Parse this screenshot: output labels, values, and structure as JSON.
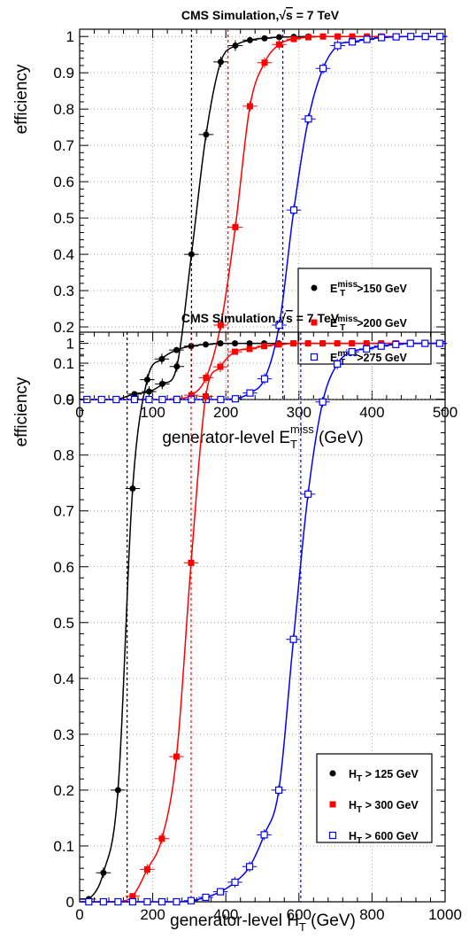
{
  "colors": {
    "black": "#000000",
    "red": "#ff0000",
    "blue": "#0000ff",
    "grid": "#a0a0a0"
  },
  "chart_data": [
    {
      "type": "scatter",
      "title_main": "CMS Simulation,",
      "title_sqrt": "s",
      "title_rest": " = 7 TeV",
      "xlabel_main": "generator-level E",
      "xlabel_sub": "T",
      "xlabel_sup": "miss",
      "xlabel_unit": " (GeV)",
      "ylabel": "efficiency",
      "xlim": [
        0,
        500
      ],
      "ylim": [
        0,
        1.02
      ],
      "xticks": [
        "0",
        "100",
        "200",
        "300",
        "400",
        "500"
      ],
      "yticks": [
        "0",
        "0.1",
        "0.2",
        "0.3",
        "0.4",
        "0.5",
        "0.6",
        "0.7",
        "0.8",
        "0.9",
        "1"
      ],
      "grid": true,
      "legend_position": "lower-right",
      "series": [
        {
          "name_main": "E",
          "name_sub": "T",
          "name_sup": "miss",
          "name_rest": ">150 GeV",
          "color": "#000000",
          "marker": "filled-circle",
          "threshold": 153,
          "x": [
            10,
            30,
            50,
            75,
            95,
            113,
            133,
            153,
            173,
            193,
            213,
            233,
            253,
            273,
            293,
            313,
            333,
            353,
            373,
            393,
            413,
            433,
            453,
            473,
            493
          ],
          "y": [
            0.0,
            0.0,
            0.0,
            0.015,
            0.022,
            0.043,
            0.091,
            0.4,
            0.73,
            0.93,
            0.975,
            0.99,
            0.995,
            0.998,
            0.999,
            1.0,
            1.0,
            1.0,
            1.0,
            1.0,
            1.0,
            1.0,
            1.0,
            1.0,
            1.0
          ]
        },
        {
          "name_main": "E",
          "name_sub": "T",
          "name_sup": "miss",
          "name_rest": ">200 GeV",
          "color": "#ff0000",
          "marker": "filled-square",
          "threshold": 203,
          "x": [
            10,
            30,
            50,
            75,
            95,
            113,
            133,
            153,
            173,
            193,
            213,
            233,
            253,
            273,
            293,
            313,
            333,
            353,
            373,
            393,
            413,
            433,
            453,
            473,
            493
          ],
          "y": [
            0.0,
            0.0,
            0.0,
            0.0,
            0.0,
            0.0,
            0.002,
            0.012,
            0.06,
            0.205,
            0.475,
            0.808,
            0.928,
            0.978,
            0.993,
            0.998,
            1.0,
            1.0,
            1.0,
            1.0,
            1.0,
            1.0,
            1.0,
            1.0,
            1.0
          ]
        },
        {
          "name_main": "E",
          "name_sub": "T",
          "name_sup": "miss",
          "name_rest": ">275 GeV",
          "color": "#0000ff",
          "marker": "open-square",
          "threshold": 278,
          "x": [
            10,
            30,
            50,
            75,
            95,
            113,
            133,
            153,
            173,
            193,
            213,
            233,
            253,
            273,
            293,
            313,
            333,
            353,
            373,
            393,
            413,
            433,
            453,
            473,
            493
          ],
          "y": [
            0.0,
            0.0,
            0.0,
            0.0,
            0.0,
            0.0,
            0.0,
            0.0,
            0.0,
            0.0,
            0.002,
            0.018,
            0.057,
            0.205,
            0.522,
            0.773,
            0.912,
            0.975,
            0.985,
            0.992,
            0.997,
            0.999,
            1.0,
            1.0,
            1.0
          ]
        }
      ]
    },
    {
      "type": "scatter",
      "title_main": "CMS Simulation,",
      "title_sqrt": "s",
      "title_rest": " = 7 TeV",
      "xlabel_main": "generator-level H",
      "xlabel_sub": "T",
      "xlabel_sup": "",
      "xlabel_unit": " (GeV)",
      "ylabel": "efficiency",
      "xlim": [
        0,
        1000
      ],
      "ylim": [
        0,
        1.02
      ],
      "xticks": [
        "0",
        "200",
        "400",
        "600",
        "800",
        "1000"
      ],
      "yticks": [
        "0",
        "0.1",
        "0.2",
        "0.3",
        "0.4",
        "0.5",
        "0.6",
        "0.7",
        "0.8",
        "0.9",
        "1"
      ],
      "grid": true,
      "legend_position": "lower-right",
      "series": [
        {
          "name_main": "H",
          "name_sub": "T",
          "name_sup": "",
          "name_rest": " > 125 GeV",
          "color": "#000000",
          "marker": "filled-circle",
          "threshold": 130,
          "x": [
            25,
            65,
            105,
            145,
            185,
            225,
            265,
            305,
            345,
            385,
            425,
            465,
            505,
            545,
            585,
            625,
            665,
            705,
            745,
            785,
            825,
            865,
            905,
            945,
            985
          ],
          "y": [
            0.005,
            0.052,
            0.2,
            0.74,
            0.935,
            0.972,
            0.988,
            0.995,
            0.998,
            1.0,
            1.0,
            1.0,
            1.0,
            1.0,
            1.0,
            1.0,
            1.0,
            1.0,
            1.0,
            1.0,
            1.0,
            1.0,
            1.0,
            1.0,
            1.0
          ]
        },
        {
          "name_main": "H",
          "name_sub": "T",
          "name_sup": "",
          "name_rest": " > 300 GeV",
          "color": "#ff0000",
          "marker": "filled-square",
          "threshold": 305,
          "x": [
            25,
            65,
            105,
            145,
            185,
            225,
            265,
            305,
            345,
            385,
            425,
            465,
            505,
            545,
            585,
            625,
            665,
            705,
            745,
            785,
            825,
            865,
            905,
            945,
            985
          ],
          "y": [
            0.0,
            0.0,
            0.0,
            0.01,
            0.058,
            0.113,
            0.26,
            0.607,
            0.905,
            0.958,
            0.985,
            0.99,
            0.995,
            0.998,
            1.0,
            1.0,
            1.0,
            1.0,
            1.0,
            1.0,
            1.0,
            1.0,
            1.0,
            1.0,
            1.0
          ]
        },
        {
          "name_main": "H",
          "name_sub": "T",
          "name_sup": "",
          "name_rest": " > 600 GeV",
          "color": "#0000ff",
          "marker": "open-square",
          "threshold": 605,
          "x": [
            25,
            65,
            105,
            145,
            185,
            225,
            265,
            305,
            345,
            385,
            425,
            465,
            505,
            545,
            585,
            625,
            665,
            705,
            745,
            785,
            825,
            865,
            905,
            945,
            985
          ],
          "y": [
            0.0,
            0.0,
            0.0,
            0.0,
            0.0,
            0.0,
            0.0,
            0.002,
            0.008,
            0.018,
            0.035,
            0.063,
            0.12,
            0.2,
            0.47,
            0.73,
            0.895,
            0.963,
            0.985,
            0.99,
            0.995,
            0.998,
            1.0,
            1.0,
            1.0
          ]
        }
      ]
    }
  ]
}
